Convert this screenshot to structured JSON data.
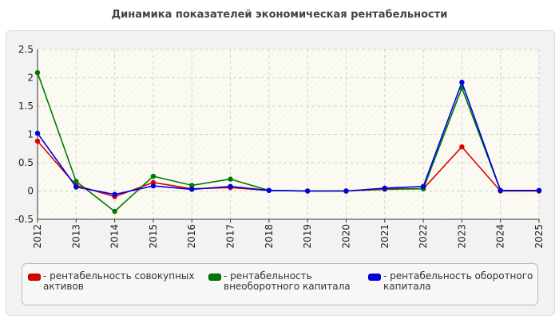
{
  "chart_data": {
    "type": "line",
    "title": "Динамика показателей экономическая рентабельности",
    "xlabel": "",
    "ylabel": "",
    "categories": [
      "2012",
      "2013",
      "2014",
      "2015",
      "2016",
      "2017",
      "2018",
      "2019",
      "2020",
      "2021",
      "2022",
      "2023",
      "2024",
      "2025"
    ],
    "ylim": [
      -0.5,
      2.5
    ],
    "yticks": [
      "-0.5",
      "0",
      "0.5",
      "1",
      "1.5",
      "2",
      "2.5"
    ],
    "grid": true,
    "legend_position": "bottom",
    "series": [
      {
        "name": "- рентабельность совокупных активов",
        "color": "#e00000",
        "values": [
          0.88,
          0.1,
          -0.1,
          0.15,
          0.04,
          0.06,
          0.01,
          0.0,
          0.0,
          0.03,
          0.04,
          0.78,
          0.0,
          0.0
        ]
      },
      {
        "name": "- рентабельность внеоборотного капитала",
        "color": "#007a00",
        "values": [
          2.09,
          0.17,
          -0.36,
          0.26,
          0.1,
          0.21,
          0.01,
          0.0,
          0.0,
          0.04,
          0.04,
          1.82,
          0.01,
          0.01
        ]
      },
      {
        "name": "- рентабельность оборотного капитала",
        "color": "#0000e0",
        "values": [
          1.02,
          0.07,
          -0.06,
          0.09,
          0.03,
          0.08,
          0.01,
          0.0,
          0.0,
          0.05,
          0.08,
          1.92,
          0.01,
          0.01
        ]
      }
    ]
  },
  "legend": {
    "items": [
      {
        "line1": "- рентабельность совокупных",
        "line2": "активов"
      },
      {
        "line1": "- рентабельность",
        "line2": "внеоборотного капитала"
      },
      {
        "line1": "- рентабельность оборотного",
        "line2": "капитала"
      }
    ]
  }
}
